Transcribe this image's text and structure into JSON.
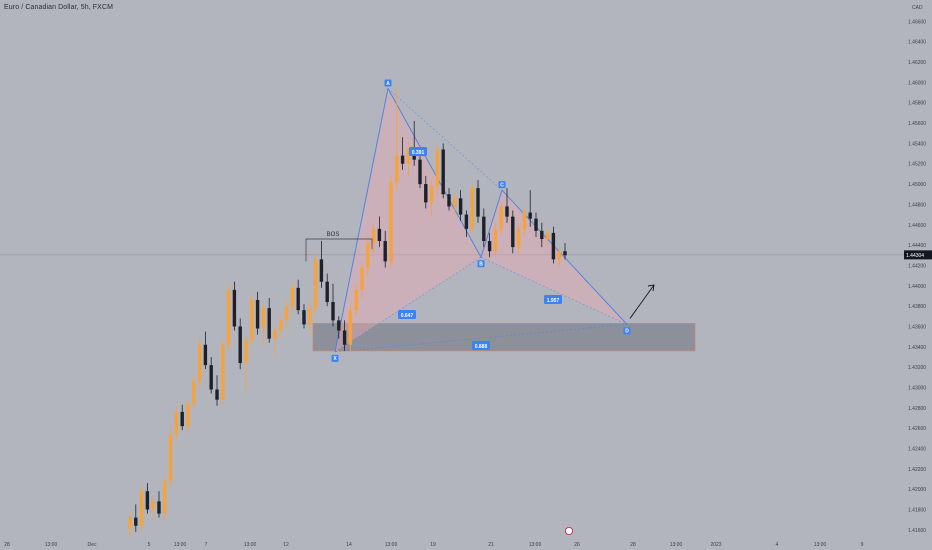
{
  "header": {
    "title": "Euro / Canadian Dollar, 5h, FXCM"
  },
  "colors": {
    "background": "#b2b5be",
    "bull": "#f7a23b",
    "bear": "#1e2127",
    "pattern_line": "#4a7fe0",
    "pattern_fill": "#e8a8b3",
    "zone_fill": "#80848e",
    "zone_border": "#c08a70",
    "label_bg": "#3b82f6",
    "price_tag_bg": "#131722"
  },
  "chart_data": {
    "type": "candlestick",
    "instrument": "Euro / Canadian Dollar",
    "timeframe": "5h",
    "source": "FXCM",
    "currency_label": "CAD",
    "y_ticks": [
      1.466,
      1.464,
      1.462,
      1.46,
      1.458,
      1.456,
      1.454,
      1.452,
      1.45,
      1.448,
      1.446,
      1.444,
      1.442,
      1.44,
      1.438,
      1.436,
      1.434,
      1.432,
      1.43,
      1.428,
      1.426,
      1.424,
      1.422,
      1.42,
      1.418,
      1.416
    ],
    "y_tick_labels": [
      "1.46600",
      "1.46400",
      "1.46200",
      "1.46000",
      "1.45800",
      "1.45600",
      "1.45400",
      "1.45200",
      "1.45000",
      "1.44800",
      "1.44600",
      "1.44400",
      "1.44200",
      "1.44000",
      "1.43800",
      "1.43600",
      "1.43400",
      "1.43200",
      "1.43000",
      "1.42800",
      "1.42600",
      "1.42400",
      "1.42200",
      "1.42000",
      "1.41800",
      "1.41600"
    ],
    "ylim": [
      1.4152,
      1.4681
    ],
    "x_ticks": [
      "28",
      "13:00",
      "Dec",
      "5",
      "13:00",
      "7",
      "13:00",
      "12",
      "14",
      "13:00",
      "19",
      "21",
      "13:00",
      "26",
      "28",
      "13:00",
      "2023",
      "4",
      "13:00",
      "9"
    ],
    "current_price": 1.44304,
    "current_price_label": "1.44304",
    "pattern": {
      "name": "bearish-to-bullish harmonic (XABCD)",
      "points": [
        {
          "label": "X",
          "price": 1.4335
        },
        {
          "label": "A",
          "price": 1.4594
        },
        {
          "label": "B",
          "price": 1.4428
        },
        {
          "label": "C",
          "price": 1.4494
        },
        {
          "label": "D",
          "price": 1.4362
        }
      ],
      "ratios": [
        "0.647",
        "0.391",
        "1.957",
        "0.888"
      ]
    },
    "annotations": [
      "BOS"
    ],
    "zone": {
      "top": 1.4363,
      "bottom": 1.4336
    },
    "candles": [
      {
        "o": 1.4161,
        "h": 1.4178,
        "l": 1.4152,
        "c": 1.4172
      },
      {
        "o": 1.4172,
        "h": 1.4185,
        "l": 1.4158,
        "c": 1.4164
      },
      {
        "o": 1.4164,
        "h": 1.4205,
        "l": 1.4158,
        "c": 1.4198
      },
      {
        "o": 1.4198,
        "h": 1.4206,
        "l": 1.4176,
        "c": 1.418
      },
      {
        "o": 1.418,
        "h": 1.4192,
        "l": 1.417,
        "c": 1.4188
      },
      {
        "o": 1.4188,
        "h": 1.4198,
        "l": 1.4172,
        "c": 1.4176
      },
      {
        "o": 1.4176,
        "h": 1.4213,
        "l": 1.4168,
        "c": 1.4208
      },
      {
        "o": 1.4208,
        "h": 1.4262,
        "l": 1.4202,
        "c": 1.4254
      },
      {
        "o": 1.4254,
        "h": 1.4282,
        "l": 1.4246,
        "c": 1.4276
      },
      {
        "o": 1.4276,
        "h": 1.4283,
        "l": 1.4258,
        "c": 1.4262
      },
      {
        "o": 1.4262,
        "h": 1.4289,
        "l": 1.4256,
        "c": 1.4284
      },
      {
        "o": 1.4284,
        "h": 1.4312,
        "l": 1.4278,
        "c": 1.4306
      },
      {
        "o": 1.4306,
        "h": 1.4348,
        "l": 1.43,
        "c": 1.4342
      },
      {
        "o": 1.4342,
        "h": 1.4355,
        "l": 1.4318,
        "c": 1.4322
      },
      {
        "o": 1.4322,
        "h": 1.433,
        "l": 1.4294,
        "c": 1.4298
      },
      {
        "o": 1.4298,
        "h": 1.4312,
        "l": 1.4282,
        "c": 1.4288
      },
      {
        "o": 1.4288,
        "h": 1.4348,
        "l": 1.4282,
        "c": 1.4342
      },
      {
        "o": 1.4342,
        "h": 1.4402,
        "l": 1.4336,
        "c": 1.4396
      },
      {
        "o": 1.4396,
        "h": 1.4404,
        "l": 1.4356,
        "c": 1.436
      },
      {
        "o": 1.436,
        "h": 1.4368,
        "l": 1.4318,
        "c": 1.4324
      },
      {
        "o": 1.4324,
        "h": 1.4352,
        "l": 1.4296,
        "c": 1.4346
      },
      {
        "o": 1.4346,
        "h": 1.4392,
        "l": 1.4338,
        "c": 1.4386
      },
      {
        "o": 1.4386,
        "h": 1.4394,
        "l": 1.4352,
        "c": 1.4358
      },
      {
        "o": 1.4358,
        "h": 1.4384,
        "l": 1.434,
        "c": 1.4378
      },
      {
        "o": 1.4378,
        "h": 1.4388,
        "l": 1.4344,
        "c": 1.4348
      },
      {
        "o": 1.4348,
        "h": 1.4362,
        "l": 1.433,
        "c": 1.4356
      },
      {
        "o": 1.4356,
        "h": 1.4372,
        "l": 1.4348,
        "c": 1.4366
      },
      {
        "o": 1.4366,
        "h": 1.4386,
        "l": 1.4358,
        "c": 1.438
      },
      {
        "o": 1.438,
        "h": 1.4404,
        "l": 1.4372,
        "c": 1.4398
      },
      {
        "o": 1.4398,
        "h": 1.4406,
        "l": 1.4372,
        "c": 1.4376
      },
      {
        "o": 1.4376,
        "h": 1.4382,
        "l": 1.4358,
        "c": 1.4362
      },
      {
        "o": 1.4362,
        "h": 1.4386,
        "l": 1.4352,
        "c": 1.4378
      },
      {
        "o": 1.4378,
        "h": 1.4432,
        "l": 1.437,
        "c": 1.4426
      },
      {
        "o": 1.4426,
        "h": 1.4444,
        "l": 1.4398,
        "c": 1.4404
      },
      {
        "o": 1.4404,
        "h": 1.4412,
        "l": 1.438,
        "c": 1.4384
      },
      {
        "o": 1.4384,
        "h": 1.4402,
        "l": 1.436,
        "c": 1.4366
      },
      {
        "o": 1.4366,
        "h": 1.437,
        "l": 1.4348,
        "c": 1.4356
      },
      {
        "o": 1.4356,
        "h": 1.4366,
        "l": 1.4336,
        "c": 1.4342
      },
      {
        "o": 1.4342,
        "h": 1.4382,
        "l": 1.4335,
        "c": 1.4376
      },
      {
        "o": 1.4376,
        "h": 1.4402,
        "l": 1.437,
        "c": 1.4396
      },
      {
        "o": 1.4396,
        "h": 1.4424,
        "l": 1.4388,
        "c": 1.4418
      },
      {
        "o": 1.4418,
        "h": 1.4448,
        "l": 1.441,
        "c": 1.4442
      },
      {
        "o": 1.4442,
        "h": 1.4462,
        "l": 1.4432,
        "c": 1.4456
      },
      {
        "o": 1.4456,
        "h": 1.4468,
        "l": 1.4438,
        "c": 1.4444
      },
      {
        "o": 1.4444,
        "h": 1.4454,
        "l": 1.4418,
        "c": 1.4424
      },
      {
        "o": 1.4424,
        "h": 1.4508,
        "l": 1.4418,
        "c": 1.4502
      },
      {
        "o": 1.4502,
        "h": 1.4594,
        "l": 1.4494,
        "c": 1.4528
      },
      {
        "o": 1.4528,
        "h": 1.4546,
        "l": 1.4514,
        "c": 1.452
      },
      {
        "o": 1.452,
        "h": 1.4542,
        "l": 1.4508,
        "c": 1.4536
      },
      {
        "o": 1.4536,
        "h": 1.4562,
        "l": 1.4518,
        "c": 1.4524
      },
      {
        "o": 1.4524,
        "h": 1.4532,
        "l": 1.4496,
        "c": 1.45
      },
      {
        "o": 1.45,
        "h": 1.4508,
        "l": 1.4476,
        "c": 1.4482
      },
      {
        "o": 1.4482,
        "h": 1.4504,
        "l": 1.4468,
        "c": 1.4498
      },
      {
        "o": 1.4498,
        "h": 1.4538,
        "l": 1.449,
        "c": 1.4534
      },
      {
        "o": 1.4534,
        "h": 1.454,
        "l": 1.4486,
        "c": 1.449
      },
      {
        "o": 1.449,
        "h": 1.4496,
        "l": 1.4474,
        "c": 1.4478
      },
      {
        "o": 1.4478,
        "h": 1.4492,
        "l": 1.447,
        "c": 1.4486
      },
      {
        "o": 1.4486,
        "h": 1.4494,
        "l": 1.4464,
        "c": 1.447
      },
      {
        "o": 1.447,
        "h": 1.4474,
        "l": 1.4448,
        "c": 1.4456
      },
      {
        "o": 1.4456,
        "h": 1.4502,
        "l": 1.445,
        "c": 1.4496
      },
      {
        "o": 1.4496,
        "h": 1.4504,
        "l": 1.4462,
        "c": 1.4468
      },
      {
        "o": 1.4468,
        "h": 1.4476,
        "l": 1.4438,
        "c": 1.4444
      },
      {
        "o": 1.4444,
        "h": 1.4452,
        "l": 1.4428,
        "c": 1.4434
      },
      {
        "o": 1.4434,
        "h": 1.4462,
        "l": 1.443,
        "c": 1.4456
      },
      {
        "o": 1.4456,
        "h": 1.4482,
        "l": 1.445,
        "c": 1.4478
      },
      {
        "o": 1.4478,
        "h": 1.4496,
        "l": 1.4462,
        "c": 1.4468
      },
      {
        "o": 1.4468,
        "h": 1.4474,
        "l": 1.4432,
        "c": 1.4438
      },
      {
        "o": 1.4438,
        "h": 1.4462,
        "l": 1.443,
        "c": 1.4456
      },
      {
        "o": 1.4456,
        "h": 1.4478,
        "l": 1.445,
        "c": 1.4472
      },
      {
        "o": 1.4472,
        "h": 1.4494,
        "l": 1.4458,
        "c": 1.4466
      },
      {
        "o": 1.4466,
        "h": 1.4472,
        "l": 1.4448,
        "c": 1.4454
      },
      {
        "o": 1.4454,
        "h": 1.4462,
        "l": 1.4438,
        "c": 1.4446
      },
      {
        "o": 1.4446,
        "h": 1.4458,
        "l": 1.444,
        "c": 1.4452
      },
      {
        "o": 1.4452,
        "h": 1.4458,
        "l": 1.4422,
        "c": 1.4426
      },
      {
        "o": 1.4426,
        "h": 1.4438,
        "l": 1.4418,
        "c": 1.4434
      },
      {
        "o": 1.4434,
        "h": 1.4442,
        "l": 1.4426,
        "c": 1.443
      }
    ]
  }
}
